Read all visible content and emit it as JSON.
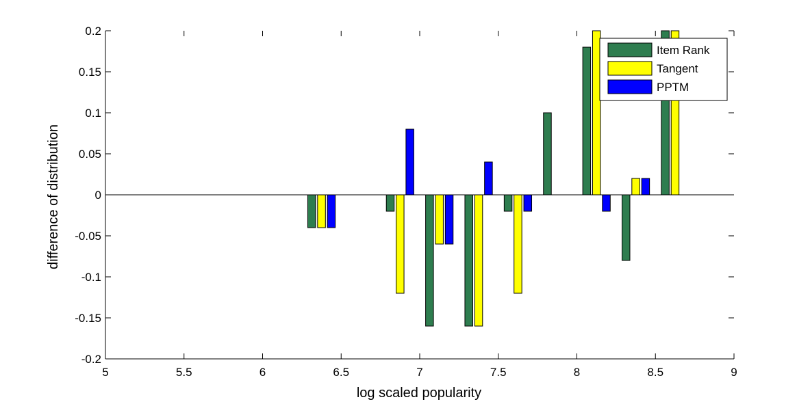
{
  "chart_data": {
    "type": "bar",
    "title": "",
    "xlabel": "log scaled popularity",
    "ylabel": "difference of distribution",
    "xlim": [
      5,
      9
    ],
    "ylim": [
      -0.2,
      0.2
    ],
    "xticks": [
      5,
      5.5,
      6,
      6.5,
      7,
      7.5,
      8,
      8.5,
      9
    ],
    "xtick_labels": [
      "5",
      "5.5",
      "6",
      "6.5",
      "7",
      "7.5",
      "8",
      "8.5",
      "9"
    ],
    "yticks": [
      -0.2,
      -0.15,
      -0.1,
      -0.05,
      0,
      0.05,
      0.1,
      0.15,
      0.2
    ],
    "ytick_labels": [
      "-0.2",
      "-0.15",
      "-0.1",
      "-0.05",
      "0",
      "0.05",
      "0.1",
      "0.15",
      "0.2"
    ],
    "grid": false,
    "legend_position": "top-right",
    "x": [
      6.375,
      6.875,
      7.125,
      7.375,
      7.625,
      7.875,
      8.125,
      8.375,
      8.625
    ],
    "series": [
      {
        "name": "Item Rank",
        "color": "#2e7d4f",
        "values": [
          -0.04,
          -0.02,
          -0.16,
          -0.16,
          -0.02,
          0.1,
          0.18,
          -0.08,
          0.2
        ]
      },
      {
        "name": "Tangent",
        "color": "#ffff00",
        "values": [
          -0.04,
          -0.12,
          -0.06,
          -0.16,
          -0.12,
          0.0,
          0.2,
          0.02,
          0.2
        ]
      },
      {
        "name": "PPTM",
        "color": "#0000ff",
        "values": [
          -0.04,
          0.08,
          -0.06,
          0.04,
          -0.02,
          0.0,
          -0.02,
          0.02,
          0.0
        ]
      }
    ]
  }
}
